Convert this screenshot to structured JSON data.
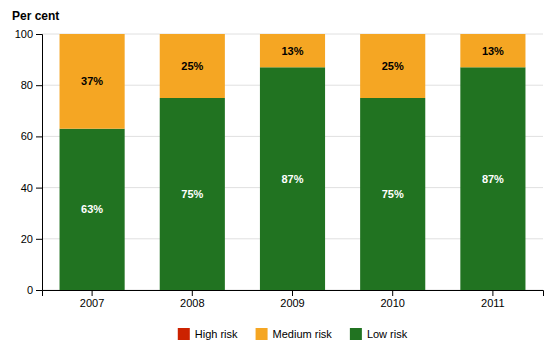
{
  "chart_data": {
    "type": "bar",
    "stacked": true,
    "data_labels": true,
    "grid": true,
    "legend": "bottom",
    "ylabel": "Per cent",
    "categories": [
      "2007",
      "2008",
      "2009",
      "2010",
      "2011"
    ],
    "series": [
      {
        "name": "Low risk",
        "color": "#217321",
        "values": [
          63,
          75,
          87,
          75,
          87
        ],
        "value_labels": [
          "63%",
          "75%",
          "87%",
          "75%",
          "87%"
        ]
      },
      {
        "name": "Medium risk",
        "color": "#F5A623",
        "values": [
          37,
          25,
          13,
          25,
          13
        ],
        "value_labels": [
          "37%",
          "25%",
          "13%",
          "25%",
          "13%"
        ]
      },
      {
        "name": "High risk",
        "color": "#CC2200",
        "values": [
          0,
          0,
          0,
          0,
          0
        ],
        "value_labels": [
          null,
          null,
          null,
          null,
          null
        ]
      }
    ],
    "ylim": [
      0,
      100
    ],
    "yticks": [
      0,
      20,
      40,
      60,
      80,
      100
    ]
  }
}
